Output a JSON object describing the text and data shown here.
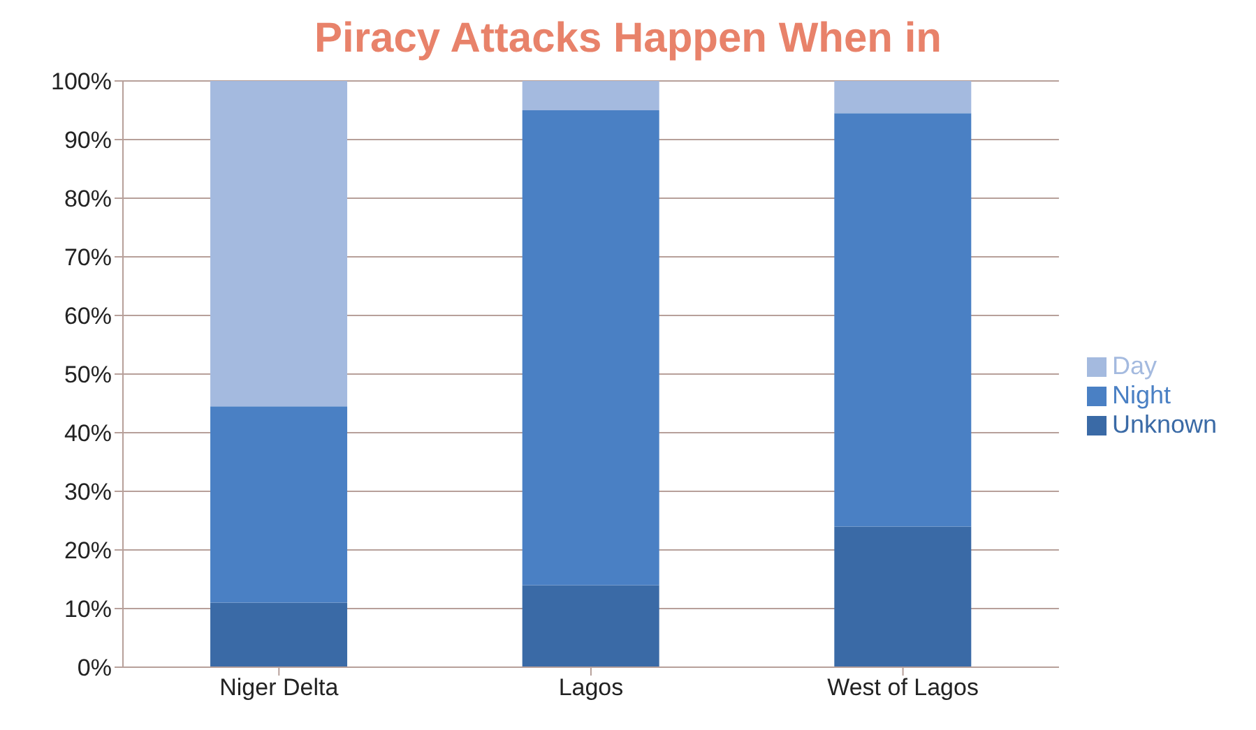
{
  "chart_data": {
    "type": "bar",
    "title": "Piracy Attacks Happen When in",
    "stacked": true,
    "categories": [
      "Niger Delta",
      "Lagos",
      "West of Lagos"
    ],
    "series": [
      {
        "name": "Unknown",
        "color": "#3a6aa6",
        "values": [
          11,
          14,
          24
        ]
      },
      {
        "name": "Night",
        "color": "#4a80c4",
        "values": [
          33.5,
          81,
          70.5
        ]
      },
      {
        "name": "Day",
        "color": "#a4badf",
        "values": [
          55.5,
          5,
          5.5
        ]
      }
    ],
    "ylim": [
      0,
      100
    ],
    "yticks": [
      {
        "value": 0,
        "label": "0%"
      },
      {
        "value": 10,
        "label": "10%"
      },
      {
        "value": 20,
        "label": "20%"
      },
      {
        "value": 30,
        "label": "30%"
      },
      {
        "value": 40,
        "label": "40%"
      },
      {
        "value": 50,
        "label": "50%"
      },
      {
        "value": 60,
        "label": "60%"
      },
      {
        "value": 70,
        "label": "70%"
      },
      {
        "value": 80,
        "label": "80%"
      },
      {
        "value": 90,
        "label": "90%"
      },
      {
        "value": 100,
        "label": "100%"
      }
    ],
    "grid": "y",
    "legend": "right"
  }
}
